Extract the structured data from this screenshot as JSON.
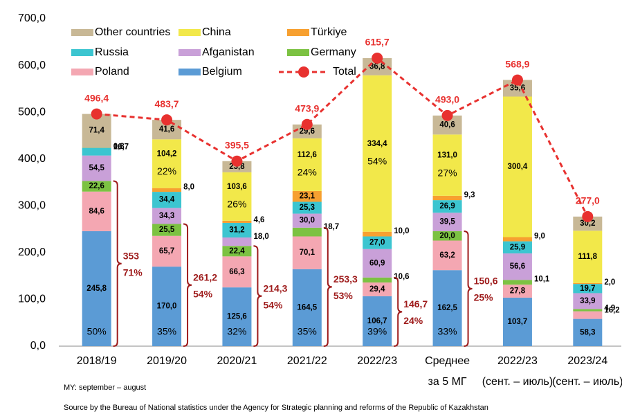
{
  "chart_data": {
    "type": "stacked_bar",
    "categories": [
      [
        "2018/19"
      ],
      [
        "2019/20"
      ],
      [
        "2020/21"
      ],
      [
        "2021/22"
      ],
      [
        "2022/23"
      ],
      [
        "Среднее",
        "за 5 МГ"
      ],
      [
        "2022/23",
        "(сент. – июль)"
      ],
      [
        "2023/24",
        "(сент. – июль)"
      ]
    ],
    "ylim": [
      0,
      700
    ],
    "yticks": [
      {
        "value": 0,
        "label": "0,0"
      },
      {
        "value": 100,
        "label": "100,0"
      },
      {
        "value": 200,
        "label": "200,0"
      },
      {
        "value": 300,
        "label": "300,0"
      },
      {
        "value": 400,
        "label": "400,0"
      },
      {
        "value": 500,
        "label": "500,0"
      },
      {
        "value": 600,
        "label": "600,0"
      },
      {
        "value": 700,
        "label": "700,0"
      }
    ],
    "series": [
      {
        "name": "Belgium",
        "color": "#5b9bd5",
        "values": [
          245.8,
          170.0,
          125.6,
          164.5,
          106.7,
          162.5,
          103.7,
          58.3
        ],
        "value_labels": [
          "245,8",
          "170,0",
          "125,6",
          "164,5",
          "106,7",
          "162,5",
          "103,7",
          "58,3"
        ],
        "shares": [
          50,
          35,
          32,
          35,
          39,
          33,
          null,
          null
        ],
        "share_labels": [
          "50%",
          "35%",
          "32%",
          "35%",
          "39%",
          "33%",
          null,
          null
        ]
      },
      {
        "name": "Poland",
        "color": "#f4a7b2",
        "values": [
          84.6,
          65.7,
          66.3,
          70.1,
          29.4,
          63.2,
          27.8,
          16.2
        ],
        "value_labels": [
          "84,6",
          "65,7",
          "66,3",
          "70,1",
          "29,4",
          "63,2",
          "27,8",
          "16,2"
        ]
      },
      {
        "name": "Germany",
        "color": "#7cc242",
        "values": [
          22.6,
          25.5,
          22.4,
          18.7,
          10.6,
          20.0,
          10.1,
          4.9
        ],
        "value_labels": [
          "22,6",
          "25,5",
          "22,4",
          "18,7",
          "10,6",
          "20,0",
          "10,1",
          "4,9"
        ]
      },
      {
        "name": "Afganistan",
        "color": "#c9a0d8",
        "values": [
          54.5,
          34.3,
          18.0,
          30.0,
          60.9,
          39.5,
          56.6,
          33.9
        ],
        "value_labels": [
          "54,5",
          "34,3",
          "18,0",
          "30,0",
          "60,9",
          "39,5",
          "56,6",
          "33,9"
        ]
      },
      {
        "name": "Russia",
        "color": "#3cc5d0",
        "values": [
          16.7,
          34.4,
          31.2,
          25.3,
          27.0,
          26.9,
          25.9,
          19.7
        ],
        "value_labels": [
          "16,7",
          "34,4",
          "31,2",
          "25,3",
          "27,0",
          "26,9",
          "25,9",
          "19,7"
        ]
      },
      {
        "name": "Türkiye",
        "color": "#f7a030",
        "values": [
          0.8,
          8.0,
          4.6,
          23.1,
          10.0,
          9.3,
          9.0,
          2.0
        ],
        "value_labels": [
          "0,8",
          "8,0",
          "4,6",
          "23,1",
          "10,0",
          "9,3",
          "9,0",
          "2,0"
        ]
      },
      {
        "name": "China",
        "color": "#f2e84a",
        "values": [
          null,
          104.2,
          103.6,
          112.6,
          334.4,
          131.0,
          300.4,
          111.8
        ],
        "value_labels": [
          null,
          "104,2",
          "103,6",
          "112,6",
          "334,4",
          "131,0",
          "300,4",
          "111,8"
        ],
        "shares": [
          null,
          22,
          26,
          24,
          54,
          27,
          null,
          null
        ],
        "share_labels": [
          null,
          "22%",
          "26%",
          "24%",
          "54%",
          "27%",
          null,
          null
        ]
      },
      {
        "name": "Other countries",
        "color": "#c8b896",
        "values": [
          71.4,
          41.6,
          23.8,
          29.6,
          36.8,
          40.6,
          35.6,
          30.2
        ],
        "value_labels": [
          "71,4",
          "41,6",
          "23,8",
          "29,6",
          "36,8",
          "40,6",
          "35,6",
          "30,2"
        ]
      }
    ],
    "total": {
      "name": "Total",
      "color": "#e8312f",
      "values": [
        496.4,
        483.7,
        395.5,
        473.9,
        615.7,
        493.0,
        568.9,
        277.0
      ],
      "value_labels": [
        "496,4",
        "483,7",
        "395,5",
        "473,9",
        "615,7",
        "493,0",
        "568,9",
        "277,0"
      ]
    },
    "brackets": {
      "values": [
        353,
        261.2,
        214.3,
        253.3,
        146.7,
        150.6
      ],
      "value_labels": [
        "353",
        "261,2",
        "214,3",
        "253,3",
        "146,7",
        "150,6"
      ],
      "shares": [
        71,
        54,
        54,
        53,
        24,
        25
      ],
      "share_labels": [
        "71%",
        "54%",
        "54%",
        "53%",
        "24%",
        "25%"
      ]
    },
    "notes": [
      "MY: september – august",
      "Source by the Bureau of National statistics under the Agency for Strategic planning and reforms of the Republic of Kazakhstan"
    ]
  }
}
